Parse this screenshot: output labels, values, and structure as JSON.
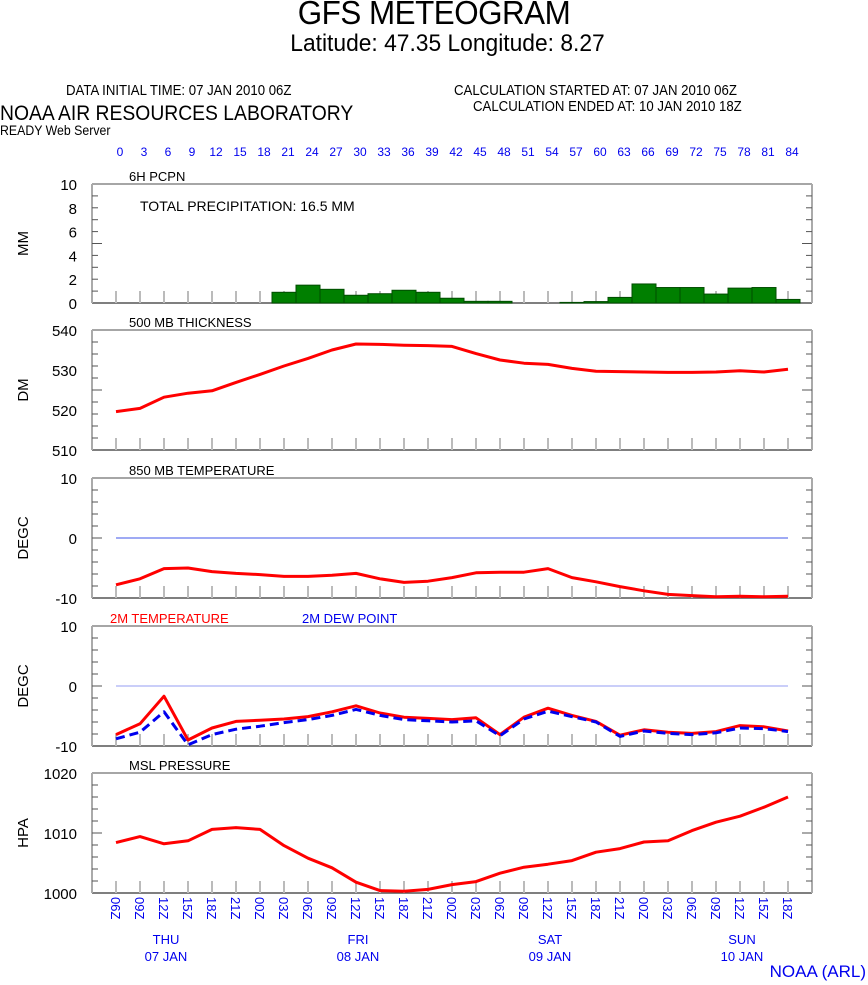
{
  "header": {
    "title": "GFS METEOGRAM",
    "subtitle": "Latitude: 47.35 Longitude:   8.27",
    "init_time": "DATA INITIAL TIME: 07 JAN 2010 06Z",
    "calc_started": "CALCULATION STARTED AT: 07 JAN 2010 06Z",
    "calc_ended": "CALCULATION ENDED AT: 10 JAN 2010 18Z",
    "lab_name": "NOAA AIR RESOURCES LABORATORY",
    "server": "READY Web Server"
  },
  "footer": "NOAA (ARL)",
  "colors": {
    "red": "#ff0000",
    "blue": "#0000ee",
    "green": "#007f00",
    "zero_line": "#6677ee",
    "axis": "#777777"
  },
  "chart_data": [
    {
      "type": "bar",
      "title": "6H PCPN",
      "annotation": "TOTAL PRECIPITATION:  16.5 MM",
      "ylabel": "MM",
      "ylim": [
        0,
        10
      ],
      "yticks": [
        0,
        2,
        4,
        6,
        8,
        10
      ],
      "x_hours": [
        21,
        24,
        27,
        30,
        33,
        36,
        39,
        42,
        45,
        48,
        57,
        60,
        63,
        66,
        69,
        72,
        75,
        78,
        81,
        84
      ],
      "values": [
        0.9,
        1.5,
        1.15,
        0.65,
        0.78,
        1.07,
        0.9,
        0.4,
        0.14,
        0.14,
        0.05,
        0.12,
        0.47,
        1.6,
        1.3,
        1.3,
        0.75,
        1.25,
        1.3,
        0.3
      ]
    },
    {
      "type": "line",
      "title": "500 MB  THICKNESS",
      "ylabel": "DM",
      "ylim": [
        510,
        540
      ],
      "yticks": [
        510,
        520,
        530,
        540
      ],
      "series": [
        {
          "name": "500 MB THICKNESS",
          "color": "#ff0000",
          "values": [
            519.6,
            520.4,
            523.2,
            524.2,
            524.8,
            526.9,
            528.9,
            531.0,
            532.9,
            535.0,
            536.5,
            536.4,
            536.2,
            536.1,
            535.9,
            534.1,
            532.5,
            531.7,
            531.4,
            530.4,
            529.7,
            529.6,
            529.5,
            529.4,
            529.4,
            529.5,
            529.8,
            529.5,
            530.2
          ]
        }
      ]
    },
    {
      "type": "line",
      "title": "850 MB  TEMPERATURE",
      "ylabel": "DEGC",
      "ylim": [
        -10,
        10
      ],
      "yticks": [
        -10,
        0,
        10
      ],
      "zero_line": true,
      "series": [
        {
          "name": "850 MB TEMPERATURE",
          "color": "#ff0000",
          "values": [
            -7.8,
            -6.8,
            -5.1,
            -5.0,
            -5.6,
            -5.9,
            -6.1,
            -6.4,
            -6.4,
            -6.2,
            -5.9,
            -6.8,
            -7.4,
            -7.2,
            -6.6,
            -5.8,
            -5.7,
            -5.7,
            -5.1,
            -6.6,
            -7.3,
            -8.1,
            -8.8,
            -9.4,
            -9.6,
            -9.8,
            -9.7,
            -9.8,
            -9.7
          ]
        }
      ]
    },
    {
      "type": "line",
      "title": "",
      "legend": [
        "2M TEMPERATURE",
        "2M   DEW POINT"
      ],
      "ylabel": "DEGC",
      "ylim": [
        -10,
        10
      ],
      "yticks": [
        -10,
        0,
        10
      ],
      "zero_line": true,
      "series": [
        {
          "name": "2M TEMPERATURE",
          "color": "#ff0000",
          "dashed": false,
          "values": [
            -8.1,
            -6.3,
            -1.7,
            -9.0,
            -7.0,
            -5.9,
            -5.7,
            -5.5,
            -5.1,
            -4.3,
            -3.3,
            -4.5,
            -5.2,
            -5.4,
            -5.6,
            -5.3,
            -8.1,
            -5.2,
            -3.7,
            -4.9,
            -5.9,
            -8.2,
            -7.3,
            -7.7,
            -7.9,
            -7.6,
            -6.6,
            -6.8,
            -7.5
          ]
        },
        {
          "name": "2M DEW POINT",
          "color": "#0000ee",
          "dashed": true,
          "values": [
            -8.8,
            -7.7,
            -4.3,
            -9.8,
            -8.1,
            -7.2,
            -6.7,
            -6.1,
            -5.6,
            -4.9,
            -3.9,
            -4.9,
            -5.6,
            -5.8,
            -6.0,
            -5.8,
            -8.3,
            -5.5,
            -4.2,
            -5.1,
            -6.0,
            -8.4,
            -7.5,
            -7.9,
            -8.1,
            -7.8,
            -7.0,
            -7.1,
            -7.6
          ]
        }
      ]
    },
    {
      "type": "line",
      "title": "MSL PRESSURE",
      "ylabel": "HPA",
      "ylim": [
        1000,
        1020
      ],
      "yticks": [
        1000,
        1010,
        1020
      ],
      "series": [
        {
          "name": "MSL PRESSURE",
          "color": "#ff0000",
          "values": [
            1008.4,
            1009.4,
            1008.2,
            1008.7,
            1010.6,
            1010.9,
            1010.6,
            1007.9,
            1005.8,
            1004.2,
            1001.8,
            1000.4,
            1000.3,
            1000.6,
            1001.4,
            1001.9,
            1003.3,
            1004.3,
            1004.8,
            1005.4,
            1006.8,
            1007.4,
            1008.5,
            1008.7,
            1010.4,
            1011.8,
            1012.8,
            1014.3,
            1016.0
          ]
        }
      ]
    }
  ],
  "x_axis": {
    "forecast_hours": [
      0,
      3,
      6,
      9,
      12,
      15,
      18,
      21,
      24,
      27,
      30,
      33,
      36,
      39,
      42,
      45,
      48,
      51,
      54,
      57,
      60,
      63,
      66,
      69,
      72,
      75,
      78,
      81,
      84
    ],
    "utc_labels": [
      "06Z",
      "09Z",
      "12Z",
      "15Z",
      "18Z",
      "21Z",
      "00Z",
      "03Z",
      "06Z",
      "09Z",
      "12Z",
      "15Z",
      "18Z",
      "21Z",
      "00Z",
      "03Z",
      "06Z",
      "09Z",
      "12Z",
      "15Z",
      "18Z",
      "21Z",
      "00Z",
      "03Z",
      "06Z",
      "09Z",
      "12Z",
      "15Z",
      "18Z"
    ],
    "days": [
      {
        "day": "THU",
        "date": "07 JAN",
        "center_hour": 6
      },
      {
        "day": "FRI",
        "date": "08 JAN",
        "center_hour": 30
      },
      {
        "day": "SAT",
        "date": "09 JAN",
        "center_hour": 54
      },
      {
        "day": "SUN",
        "date": "10 JAN",
        "center_hour": 78
      }
    ]
  }
}
